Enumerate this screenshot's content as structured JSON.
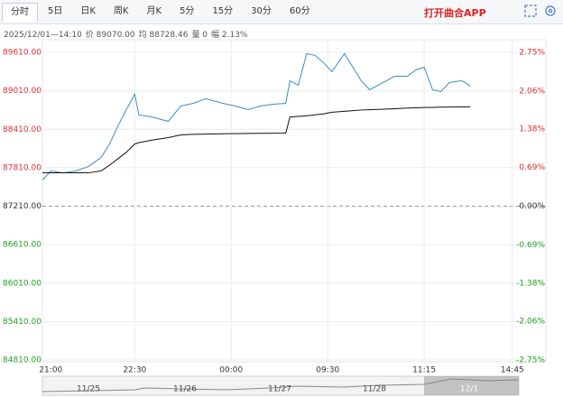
{
  "tabs": [
    "分时",
    "5日",
    "日K",
    "周K",
    "月K",
    "5分",
    "15分",
    "30分",
    "60分"
  ],
  "app_link": "打开曲合APP",
  "info": [
    "2025/12/01—14:10",
    "价 89070.00",
    "均 88728.46",
    "量 0",
    "幅 2.13%"
  ],
  "navigator_dates": [
    "11/25",
    "11/26",
    "11/27",
    "11/28",
    "12/1"
  ],
  "chart_data": {
    "type": "line",
    "x": [
      0,
      2,
      5,
      8,
      11,
      14,
      16,
      18,
      20,
      22,
      23,
      26,
      30,
      33,
      36,
      39,
      43,
      46,
      49,
      52,
      55,
      58,
      59,
      61,
      63,
      65,
      67,
      69,
      72,
      74,
      76,
      78,
      80,
      82,
      84,
      87,
      89,
      91,
      93,
      95,
      97,
      100,
      102
    ],
    "series": [
      {
        "color": "#3a8cc8",
        "values": [
          87618,
          87759,
          87730,
          87759,
          87830,
          87970,
          88180,
          88460,
          88716,
          88956,
          88632,
          88604,
          88533,
          88773,
          88815,
          88886,
          88815,
          88773,
          88716,
          88773,
          88801,
          88815,
          89167,
          89097,
          89590,
          89562,
          89449,
          89308,
          89590,
          89378,
          89167,
          89026,
          89097,
          89167,
          89237,
          89237,
          89336,
          89378,
          89026,
          88998,
          89139,
          89167,
          89083
        ]
      },
      {
        "color": "#111111",
        "values": [
          87730,
          87730,
          87730,
          87730,
          87730,
          87760,
          87850,
          87950,
          88050,
          88180,
          88200,
          88240,
          88280,
          88322,
          88330,
          88335,
          88340,
          88342,
          88345,
          88347,
          88348,
          88350,
          88600,
          88610,
          88620,
          88635,
          88650,
          88675,
          88690,
          88700,
          88710,
          88715,
          88720,
          88725,
          88730,
          88740,
          88745,
          88750,
          88752,
          88755,
          88757,
          88758,
          88760
        ]
      }
    ],
    "xlim": [
      0,
      120
    ],
    "xticks": [
      {
        "value": 2,
        "label": "21:00"
      },
      {
        "value": 22,
        "label": "22:30"
      },
      {
        "value": 45,
        "label": "00:00"
      },
      {
        "value": 68,
        "label": "09:30"
      },
      {
        "value": 91,
        "label": "11:15"
      },
      {
        "value": 112,
        "label": "14:45"
      }
    ],
    "ylim": [
      84810,
      89610
    ],
    "yticks": [
      {
        "value": 89610,
        "label": "89610.00"
      },
      {
        "value": 89010,
        "label": "89010.00"
      },
      {
        "value": 88410,
        "label": "88410.00"
      },
      {
        "value": 87810,
        "label": "87810.00"
      },
      {
        "value": 87210,
        "label": "87210.00"
      },
      {
        "value": 86610,
        "label": "86610.00"
      },
      {
        "value": 86010,
        "label": "86010.00"
      },
      {
        "value": 85410,
        "label": "85410.00"
      },
      {
        "value": 84810,
        "label": "84810.00"
      }
    ],
    "y2lim": [
      -2.75,
      2.75
    ],
    "y2ticks": [
      {
        "value": 2.75,
        "label": "2.75%"
      },
      {
        "value": 2.06,
        "label": "2.06%"
      },
      {
        "value": 1.38,
        "label": "1.38%"
      },
      {
        "value": 0.69,
        "label": "0.69%"
      },
      {
        "value": 0,
        "label": "0.00%"
      },
      {
        "value": -0.69,
        "label": "-0.69%"
      },
      {
        "value": -1.38,
        "label": "-1.38%"
      },
      {
        "value": -2.06,
        "label": "-2.06%"
      },
      {
        "value": -2.75,
        "label": "-2.75%"
      }
    ],
    "grid": true
  }
}
